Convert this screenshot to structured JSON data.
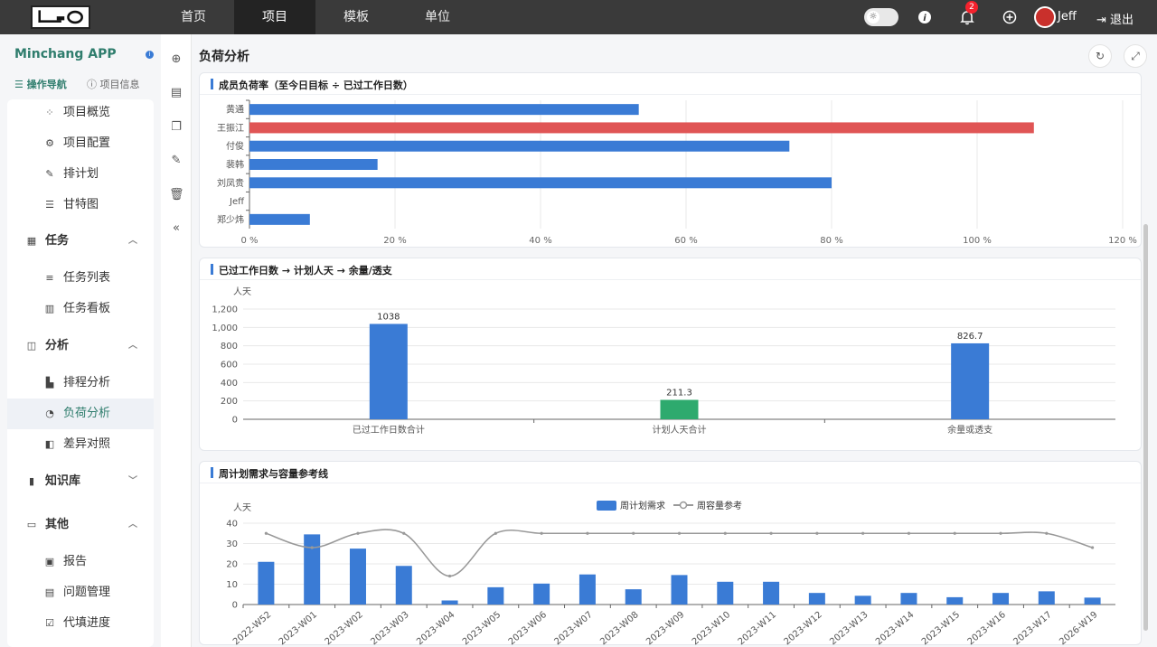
{
  "topnav": {
    "items": [
      {
        "label": "首页"
      },
      {
        "label": "项目"
      },
      {
        "label": "模板"
      },
      {
        "label": "单位"
      }
    ],
    "notification_count": "2",
    "user": "Jeff",
    "logout": "退出"
  },
  "sidebar": {
    "app_name": "Minchang APP",
    "tabs": {
      "nav": "操作导航",
      "info": "项目信息"
    },
    "menu": [
      {
        "label": "项目概览",
        "kind": "sub",
        "icon": "grid-icon"
      },
      {
        "label": "项目配置",
        "kind": "sub",
        "icon": "settings-icon"
      },
      {
        "label": "排计划",
        "kind": "sub",
        "icon": "edit-icon"
      },
      {
        "label": "甘特图",
        "kind": "sub",
        "icon": "gantt-icon"
      },
      {
        "label": "任务",
        "kind": "group",
        "icon": "calendar-icon",
        "chevron": "up"
      },
      {
        "label": "任务列表",
        "kind": "sub",
        "icon": "list-icon"
      },
      {
        "label": "任务看板",
        "kind": "sub",
        "icon": "board-icon"
      },
      {
        "label": "分析",
        "kind": "group",
        "icon": "analysis-icon",
        "chevron": "up"
      },
      {
        "label": "排程分析",
        "kind": "sub",
        "icon": "bar-chart-icon"
      },
      {
        "label": "负荷分析",
        "kind": "sub",
        "icon": "gauge-icon",
        "selected": true
      },
      {
        "label": "差异对照",
        "kind": "sub",
        "icon": "compare-icon"
      },
      {
        "label": "知识库",
        "kind": "group",
        "icon": "library-icon",
        "chevron": "down"
      },
      {
        "label": "其他",
        "kind": "group",
        "icon": "other-icon",
        "chevron": "up"
      },
      {
        "label": "报告",
        "kind": "sub",
        "icon": "report-icon"
      },
      {
        "label": "问题管理",
        "kind": "sub",
        "icon": "issue-icon"
      },
      {
        "label": "代填进度",
        "kind": "sub",
        "icon": "progress-icon"
      }
    ]
  },
  "main": {
    "title": "负荷分析",
    "panels": {
      "load": "成员负荷率（至今日目标 ÷ 已过工作日数）",
      "summary": "已过工作日数 → 计划人天 → 余量/透支",
      "weekly": "周计划需求与容量参考线"
    }
  },
  "colors": {
    "bar": "#3a7bd5",
    "over": "#e05555",
    "green": "#2eaa6e",
    "line": "#999999",
    "accent": "#2f7d6d"
  },
  "chart_data": [
    {
      "type": "bar",
      "orientation": "horizontal",
      "categories": [
        "黄通",
        "王振江",
        "付俊",
        "裴韩",
        "刘凤贵",
        "Jeff",
        "郑少炜"
      ],
      "values": [
        53.5,
        107.8,
        74.2,
        17.6,
        80.0,
        0,
        8.3
      ],
      "highlight_index": 1,
      "xlim": [
        0,
        120
      ],
      "xticks": [
        "0 %",
        "20 %",
        "40 %",
        "60 %",
        "80 %",
        "100 %",
        "120 %"
      ]
    },
    {
      "type": "bar",
      "categories": [
        "已过工作日数合计",
        "计划人天合计",
        "余量或透支"
      ],
      "values": [
        1038,
        211.3,
        826.7
      ],
      "value_labels": [
        "1038",
        "211.3",
        "826.7"
      ],
      "ylabel": "人天",
      "ylim": [
        0,
        1200
      ],
      "yticks": [
        "0",
        "200",
        "400",
        "600",
        "800",
        "1,000",
        "1,200"
      ]
    },
    {
      "type": "bar",
      "categories": [
        "2022-W52",
        "2023-W01",
        "2023-W02",
        "2023-W03",
        "2023-W04",
        "2023-W05",
        "2023-W06",
        "2023-W07",
        "2023-W08",
        "2023-W09",
        "2023-W10",
        "2023-W11",
        "2023-W12",
        "2023-W13",
        "2023-W14",
        "2023-W15",
        "2023-W16",
        "2023-W17",
        "2026-W19"
      ],
      "series": [
        {
          "name": "周计划需求",
          "type": "bar",
          "values": [
            21,
            34.5,
            27.5,
            19,
            2,
            8.5,
            10.3,
            14.8,
            7.5,
            14.5,
            11.2,
            11.2,
            5.7,
            4.3,
            5.7,
            3.6,
            5.7,
            6.5,
            3.4
          ]
        },
        {
          "name": "周容量参考",
          "type": "line",
          "values": [
            35,
            28,
            35,
            35,
            14,
            35,
            35,
            35,
            35,
            35,
            35,
            35,
            35,
            35,
            35,
            35,
            35,
            35,
            28
          ]
        }
      ],
      "ylabel": "人天",
      "ylim": [
        0,
        40
      ],
      "yticks": [
        "0",
        "10",
        "20",
        "30",
        "40"
      ]
    }
  ]
}
